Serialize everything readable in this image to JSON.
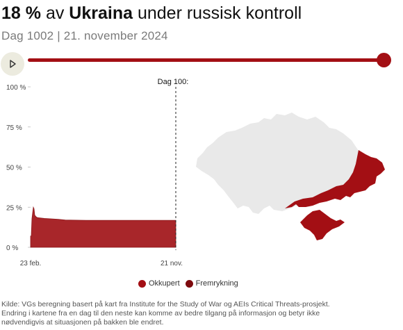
{
  "header": {
    "percent": "18 %",
    "av": "av",
    "country": "Ukraina",
    "rest": "under russisk kontroll",
    "subtitle": "Dag 1002 | 21. november 2024"
  },
  "timeline": {
    "play_icon": "play-icon",
    "progress": 1.0
  },
  "chart_data": {
    "type": "area",
    "y_ticks": [
      "100 %",
      "75 %",
      "50 %",
      "25 %",
      "0 %"
    ],
    "x_ticks": [
      "23 feb.",
      "21 nov."
    ],
    "ylim": [
      0,
      100
    ],
    "marker_label": "Dag 100:",
    "series": [
      {
        "name": "Okkupert",
        "points": [
          [
            0,
            7
          ],
          [
            1,
            7
          ],
          [
            2,
            18
          ],
          [
            4,
            25
          ],
          [
            5,
            24
          ],
          [
            6,
            20
          ],
          [
            8,
            19
          ],
          [
            10,
            18.5
          ],
          [
            20,
            18
          ],
          [
            40,
            17.5
          ],
          [
            50,
            17
          ],
          [
            80,
            16.8
          ],
          [
            150,
            16.8
          ],
          [
            210,
            16.8
          ]
        ]
      }
    ]
  },
  "legend": {
    "items": [
      {
        "label": "Okkupert",
        "color": "#a30f14"
      },
      {
        "label": "Fremrykning",
        "color": "#7d0a0d"
      }
    ]
  },
  "colors": {
    "accent": "#a30f14",
    "map_base": "#e9e9e9"
  },
  "source": {
    "line1": "Kilde: VGs beregning basert på kart fra Institute for the Study of War og AEIs Critical Threats-prosjekt.",
    "line2": "Endring i kartene fra en dag til den neste kan komme av bedre tilgang på informasjon og betyr ikke",
    "line3": "nødvendigvis at situasjonen på bakken ble endret."
  }
}
